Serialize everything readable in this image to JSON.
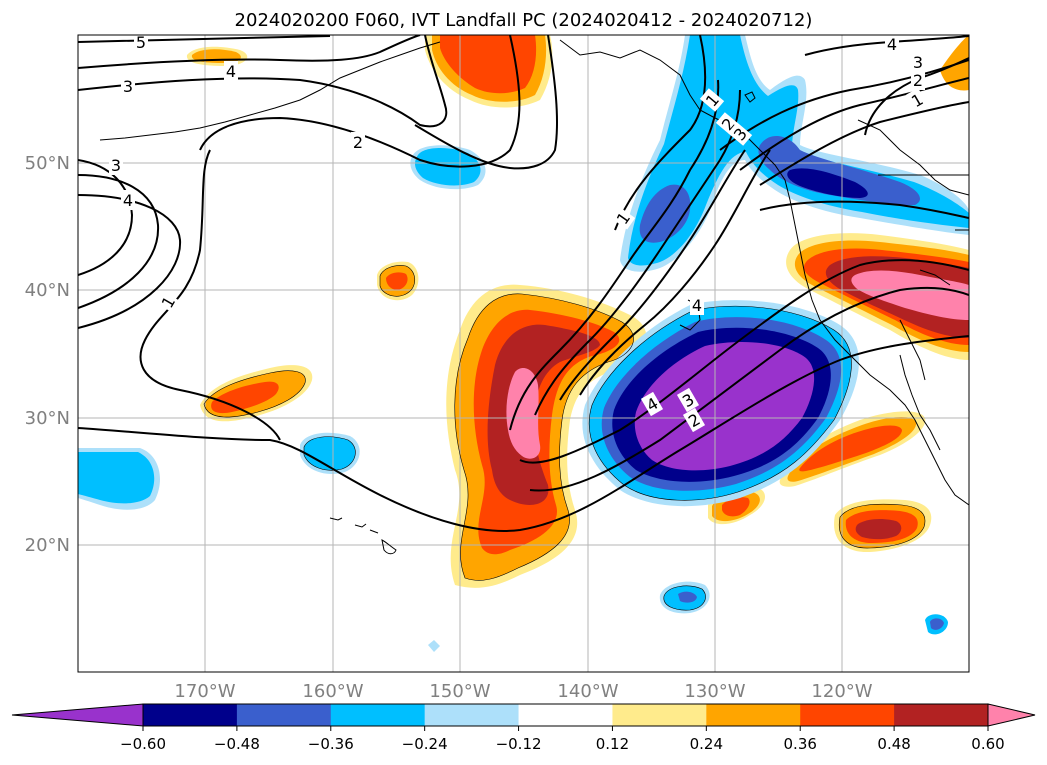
{
  "title": "2024020200 F060, IVT Landfall PC (2024020412 - 2024020712)",
  "lat_labels": [
    "50°N",
    "40°N",
    "30°N",
    "20°N"
  ],
  "lon_labels": [
    "170°W",
    "160°W",
    "150°W",
    "140°W",
    "130°W",
    "120°W"
  ],
  "colorbar": {
    "ticks": [
      "−0.60",
      "−0.48",
      "−0.36",
      "−0.24",
      "−0.12",
      "0.12",
      "0.24",
      "0.36",
      "0.48",
      "0.60"
    ],
    "colors": [
      "#9932CC",
      "#00008B",
      "#3A5FCD",
      "#00BFFF",
      "#ADE0FA",
      "#FFFFFF",
      "#FFEB8C",
      "#FFA500",
      "#FF4500",
      "#B22222",
      "#FF82AB"
    ]
  },
  "contour_labels": [
    "5",
    "4",
    "3",
    "3",
    "4",
    "2",
    "1",
    "1",
    "4",
    "3",
    "2",
    "1",
    "2",
    "3",
    "4",
    "1",
    "2",
    "3",
    "4"
  ]
}
